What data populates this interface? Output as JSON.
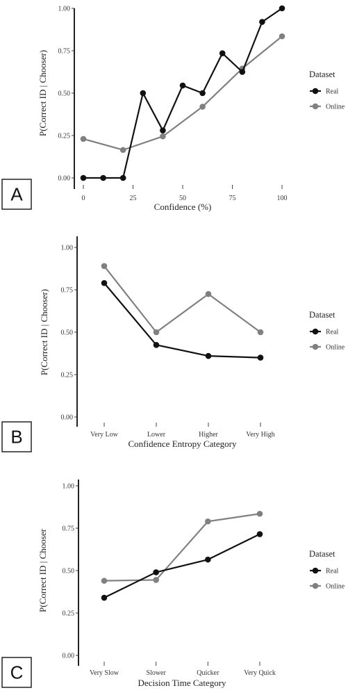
{
  "chart_data": [
    {
      "type": "line",
      "panel_label": "A",
      "xlabel": "Confidence (%)",
      "ylabel": "P(Correct ID | Chooser)",
      "x_numeric": true,
      "xlim": [
        0,
        100
      ],
      "ylim": [
        0,
        1
      ],
      "x_ticks": [
        0,
        25,
        50,
        75,
        100
      ],
      "x_tick_labels": [
        "0",
        "25",
        "50",
        "75",
        "100"
      ],
      "y_ticks": [
        0,
        0.25,
        0.5,
        0.75,
        1.0
      ],
      "y_tick_labels": [
        "0.00",
        "0.25",
        "0.50",
        "0.75",
        "1.00"
      ],
      "legend": {
        "title": "Dataset",
        "position": "right",
        "entries": [
          "Real",
          "Online"
        ]
      },
      "series": [
        {
          "name": "Real",
          "color": "#111111",
          "x": [
            0,
            10,
            20,
            30,
            40,
            50,
            60,
            70,
            80,
            90,
            100
          ],
          "y": [
            0.0,
            0.0,
            0.0,
            0.5,
            0.28,
            0.545,
            0.5,
            0.735,
            0.625,
            0.92,
            1.0
          ]
        },
        {
          "name": "Online",
          "color": "#808080",
          "x": [
            0,
            20,
            40,
            60,
            80,
            100
          ],
          "y": [
            0.23,
            0.165,
            0.245,
            0.42,
            0.645,
            0.835
          ]
        }
      ]
    },
    {
      "type": "line",
      "panel_label": "B",
      "xlabel": "Confidence Entropy Category",
      "ylabel": "P(Correct ID | Chooser)",
      "x_numeric": false,
      "categories": [
        "Very Low",
        "Lower",
        "Higher",
        "Very High"
      ],
      "ylim": [
        0,
        1
      ],
      "y_ticks": [
        0,
        0.25,
        0.5,
        0.75,
        1.0
      ],
      "y_tick_labels": [
        "0.00",
        "0.25",
        "0.50",
        "0.75",
        "1.00"
      ],
      "legend": {
        "title": "Dataset",
        "position": "right",
        "entries": [
          "Real",
          "Online"
        ]
      },
      "series": [
        {
          "name": "Real",
          "color": "#111111",
          "values": [
            0.79,
            0.425,
            0.36,
            0.35
          ]
        },
        {
          "name": "Online",
          "color": "#808080",
          "values": [
            0.89,
            0.5,
            0.725,
            0.5
          ]
        }
      ]
    },
    {
      "type": "line",
      "panel_label": "C",
      "xlabel": "Decision Time Category",
      "ylabel": "P(Correct ID | Chooser",
      "x_numeric": false,
      "categories": [
        "Very Slow",
        "Slower",
        "Quicker",
        "Very Quick"
      ],
      "ylim": [
        0,
        1
      ],
      "y_ticks": [
        0,
        0.25,
        0.5,
        0.75,
        1.0
      ],
      "y_tick_labels": [
        "0.00",
        "0.25",
        "0.50",
        "0.75",
        "1.00"
      ],
      "legend": {
        "title": "Dataset",
        "position": "right",
        "entries": [
          "Real",
          "Online"
        ]
      },
      "series": [
        {
          "name": "Real",
          "color": "#111111",
          "values": [
            0.34,
            0.49,
            0.565,
            0.715
          ]
        },
        {
          "name": "Online",
          "color": "#808080",
          "values": [
            0.44,
            0.445,
            0.79,
            0.835
          ]
        }
      ]
    }
  ]
}
